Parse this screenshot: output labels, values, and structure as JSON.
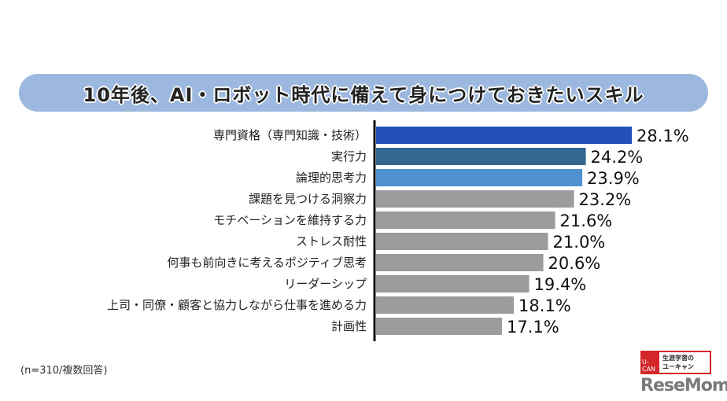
{
  "chart_data": {
    "type": "bar",
    "orientation": "horizontal",
    "title": "10年後、AI・ロボット時代に備えて身につけておきたいスキル",
    "categories": [
      "専門資格（専門知識・技術）",
      "実行力",
      "論理的思考力",
      "課題を見つける洞察力",
      "モチベーションを維持する力",
      "ストレス耐性",
      "何事も前向きに考えるポジティブ思考",
      "リーダーシップ",
      "上司・同僚・顧客と協力しながら仕事を進める力",
      "計画性"
    ],
    "values": [
      28.1,
      24.2,
      23.9,
      23.2,
      21.6,
      21.0,
      20.6,
      19.4,
      18.1,
      17.1
    ],
    "value_labels": [
      "28.1%",
      "24.2%",
      "23.9%",
      "23.2%",
      "21.6%",
      "21.0%",
      "20.6%",
      "19.4%",
      "18.1%",
      "17.1%"
    ],
    "colors": [
      "#2050b8",
      "#336690",
      "#4f90d0",
      "#9c9c9c",
      "#9c9c9c",
      "#9c9c9c",
      "#9c9c9c",
      "#9c9c9c",
      "#9c9c9c",
      "#9c9c9c"
    ],
    "grid": false,
    "legend": "none",
    "note": "(n=310/複数回答)"
  },
  "logo": {
    "ucan_text": "生涯学習のユーキャン",
    "ucan_mark": "U-CAN",
    "resemom": "ReseMom"
  }
}
